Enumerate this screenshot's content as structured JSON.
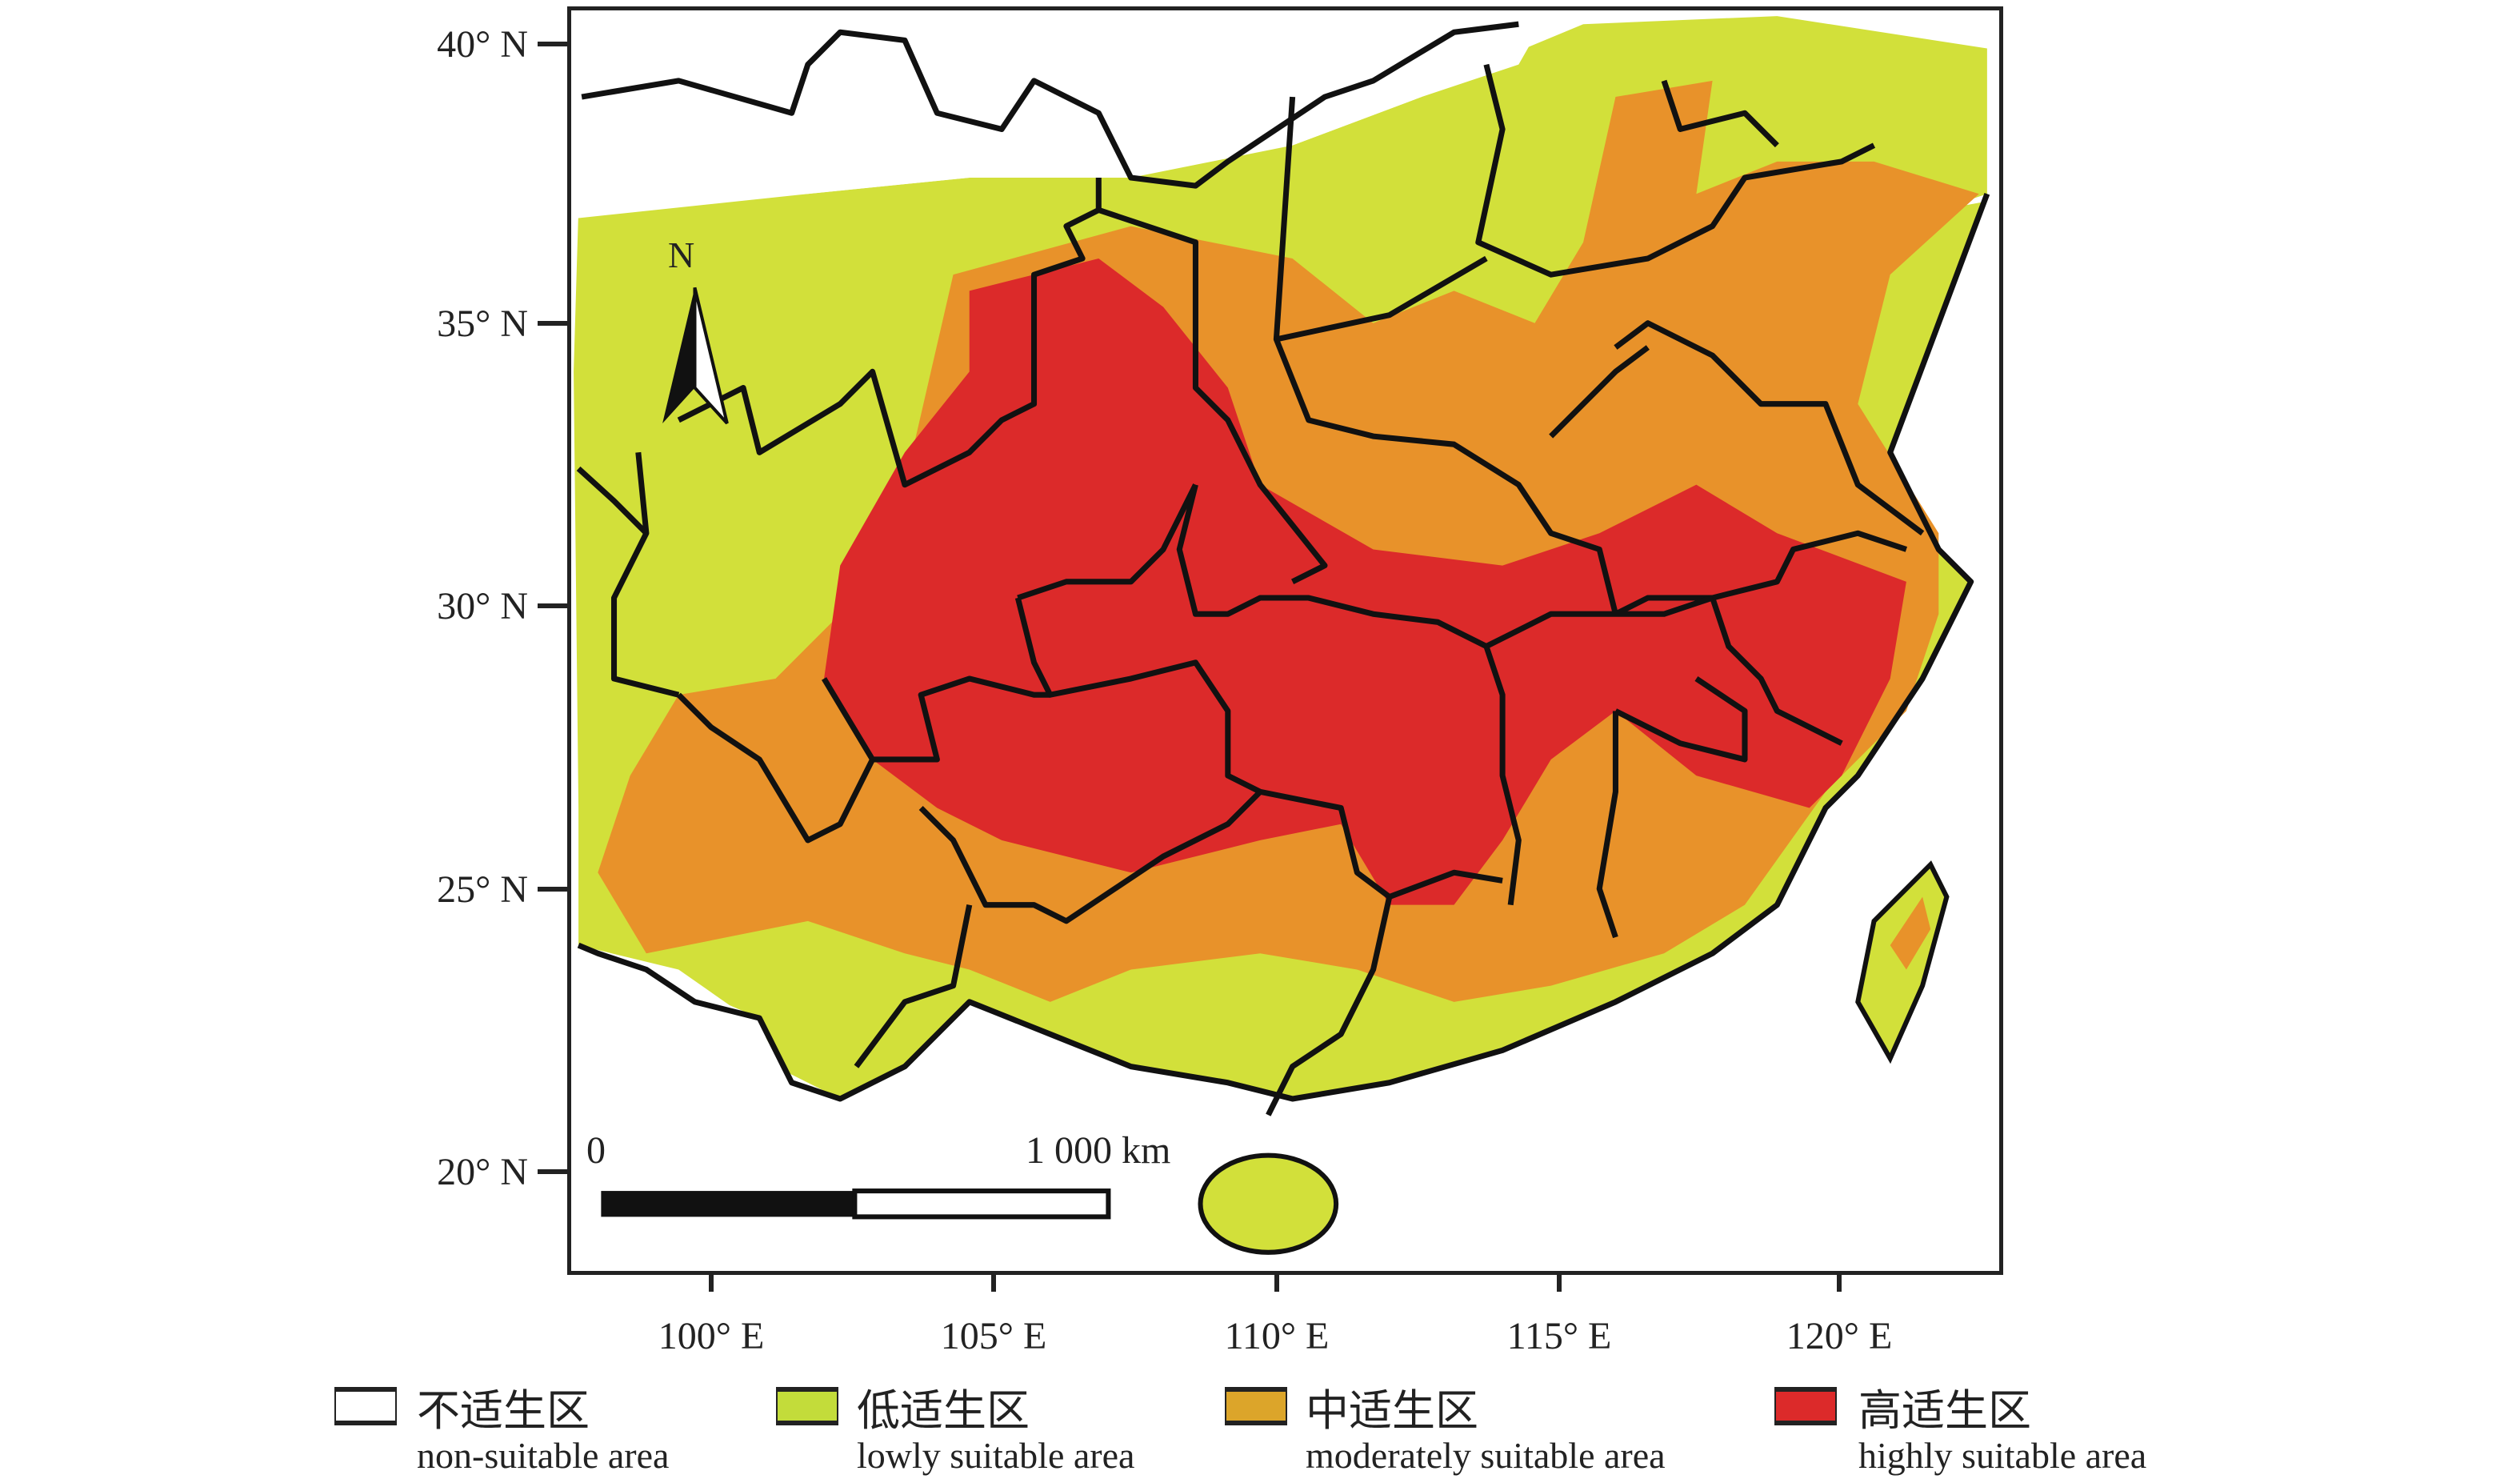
{
  "latitude_labels": [
    "40° N",
    "35° N",
    "30° N",
    "25° N",
    "20° N"
  ],
  "longitude_labels": [
    "100° E",
    "105° E",
    "110° E",
    "115° E",
    "120° E"
  ],
  "north_arrow": "N",
  "scale_bar": {
    "start": "0",
    "end": "1 000 km"
  },
  "legend": [
    {
      "cn": "不适生区",
      "en": "non-suitable area",
      "color": "#ffffff"
    },
    {
      "cn": "低适生区",
      "en": "lowly suitable area",
      "color": "#c3dc3a"
    },
    {
      "cn": "中适生区",
      "en": "moderately suitable area",
      "color": "#e8922a"
    },
    {
      "cn": "高适生区",
      "en": "highly suitable area",
      "color": "#dc2a2a"
    }
  ]
}
